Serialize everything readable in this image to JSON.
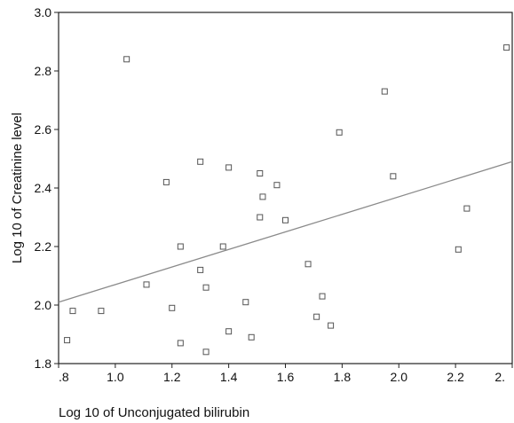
{
  "chart_data": {
    "type": "scatter",
    "xlabel": "Log 10 of Unconjugated bilirubin",
    "ylabel": "Log 10 of Creatinine level",
    "xlim": [
      0.8,
      2.4
    ],
    "ylim": [
      1.8,
      3.0
    ],
    "x_ticks": [
      ".8",
      "1.0",
      "1.2",
      "1.4",
      "1.6",
      "1.8",
      "2.0",
      "2.2",
      "2."
    ],
    "y_ticks": [
      "1.8",
      "2.0",
      "2.2",
      "2.4",
      "2.6",
      "2.8",
      "3.0"
    ],
    "grid": false,
    "marker": "hollow-square",
    "points": [
      {
        "x": 0.83,
        "y": 1.88
      },
      {
        "x": 0.85,
        "y": 1.98
      },
      {
        "x": 0.95,
        "y": 1.98
      },
      {
        "x": 1.04,
        "y": 2.84
      },
      {
        "x": 1.11,
        "y": 2.07
      },
      {
        "x": 1.18,
        "y": 2.42
      },
      {
        "x": 1.2,
        "y": 1.99
      },
      {
        "x": 1.23,
        "y": 2.2
      },
      {
        "x": 1.23,
        "y": 1.87
      },
      {
        "x": 1.3,
        "y": 2.49
      },
      {
        "x": 1.3,
        "y": 2.12
      },
      {
        "x": 1.32,
        "y": 2.06
      },
      {
        "x": 1.32,
        "y": 1.84
      },
      {
        "x": 1.38,
        "y": 2.2
      },
      {
        "x": 1.4,
        "y": 2.47
      },
      {
        "x": 1.4,
        "y": 1.91
      },
      {
        "x": 1.46,
        "y": 2.01
      },
      {
        "x": 1.48,
        "y": 1.89
      },
      {
        "x": 1.51,
        "y": 2.45
      },
      {
        "x": 1.51,
        "y": 2.3
      },
      {
        "x": 1.52,
        "y": 2.37
      },
      {
        "x": 1.57,
        "y": 2.41
      },
      {
        "x": 1.6,
        "y": 2.29
      },
      {
        "x": 1.68,
        "y": 2.14
      },
      {
        "x": 1.71,
        "y": 1.96
      },
      {
        "x": 1.73,
        "y": 2.03
      },
      {
        "x": 1.76,
        "y": 1.93
      },
      {
        "x": 1.79,
        "y": 2.59
      },
      {
        "x": 1.95,
        "y": 2.73
      },
      {
        "x": 1.98,
        "y": 2.44
      },
      {
        "x": 2.21,
        "y": 2.19
      },
      {
        "x": 2.24,
        "y": 2.33
      },
      {
        "x": 2.38,
        "y": 2.88
      }
    ],
    "fit_line": {
      "x": [
        0.8,
        2.4
      ],
      "y": [
        2.01,
        2.49
      ]
    },
    "colors": {
      "marker": "#555555",
      "fit_line": "#8a8a8a",
      "axes": "#222222",
      "text": "#111111"
    }
  }
}
